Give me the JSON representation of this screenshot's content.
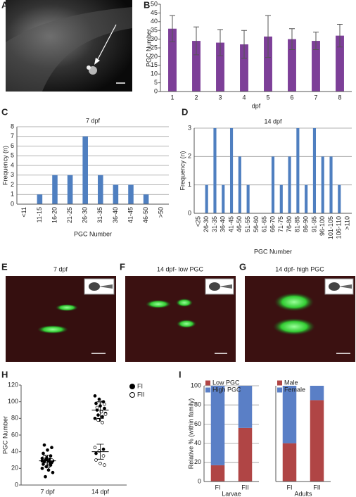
{
  "figure": {
    "panel_labels": [
      "A",
      "B",
      "C",
      "D",
      "E",
      "F",
      "G",
      "H",
      "I"
    ],
    "image_titles": [
      "7 dpf",
      "14 dpf- low PGC",
      "14 dpf- high PGC"
    ]
  },
  "chart_data": [
    {
      "type": "bar",
      "categories": [
        "1",
        "2",
        "3",
        "4",
        "5",
        "6",
        "7",
        "8"
      ],
      "values": [
        36,
        29,
        28,
        27,
        31.5,
        30,
        29,
        32
      ],
      "errors": [
        7.5,
        8,
        7.5,
        8,
        12,
        6,
        5,
        6.5
      ],
      "color": "#7d3f98",
      "xlabel": "dpf",
      "ylabel": "PGC Number",
      "ylim": [
        0,
        50
      ],
      "yticks": [
        0,
        5,
        10,
        15,
        20,
        25,
        30,
        35,
        40,
        45,
        50
      ],
      "grid": false
    },
    {
      "type": "bar",
      "title": "7 dpf",
      "categories": [
        "<11",
        "11-15",
        "16-20",
        "21-25",
        "26-30",
        "31-35",
        "36-40",
        "41-45",
        "46-50",
        ">50"
      ],
      "values": [
        0,
        1,
        3,
        3,
        7,
        3,
        2,
        2,
        1,
        0
      ],
      "color": "#4f7fc0",
      "xlabel": "PGC Number",
      "ylabel": "Frequency (n)",
      "ylim": [
        0,
        8
      ],
      "yticks": [
        0,
        1,
        2,
        3,
        4,
        5,
        6,
        7,
        8
      ],
      "grid": true
    },
    {
      "type": "bar",
      "title": "14 dpf",
      "categories": [
        "<25",
        "26-30",
        "31-35",
        "36-40",
        "41-45",
        "46-50",
        "51-55",
        "56-60",
        "61-65",
        "66-70",
        "71-75",
        "76-80",
        "81-85",
        "86-90",
        "91-95",
        "96-100",
        "101-105",
        "106-110",
        ">110"
      ],
      "values": [
        0,
        1,
        3,
        1,
        3,
        2,
        1,
        0,
        0,
        2,
        1,
        2,
        3,
        1,
        3,
        2,
        2,
        1,
        0
      ],
      "color": "#4f7fc0",
      "xlabel": "PGC Number",
      "ylabel": "Frequency (n)",
      "ylim": [
        0,
        3
      ],
      "yticks": [
        0,
        1,
        2,
        3
      ],
      "grid": true
    },
    {
      "type": "strip",
      "categories": [
        "7 dpf",
        "14 dpf"
      ],
      "ylabel": "PGC Number",
      "ylim": [
        0,
        120
      ],
      "yticks": [
        0,
        20,
        40,
        60,
        80,
        100,
        120
      ],
      "series": [
        {
          "name": "FI",
          "marker": "filled",
          "color": "#000000",
          "values": [
            [
              20,
              22,
              24,
              25,
              26,
              27,
              28,
              28,
              29,
              30,
              31,
              32,
              33,
              35,
              38,
              42,
              45,
              48,
              18,
              15,
              10,
              27,
              29,
              31
            ],
            [
              107,
              103,
              100,
              98,
              95,
              92,
              90,
              88,
              86,
              84,
              82,
              80,
              78,
              43,
              38
            ]
          ]
        },
        {
          "name": "FII",
          "marker": "open",
          "color": "#000000",
          "values": [
            [
              26,
              30,
              34,
              22
            ],
            [
              100,
              97,
              93,
              88,
              85,
              78,
              75,
              45,
              41,
              35,
              30,
              26,
              24
            ]
          ]
        }
      ],
      "summaries": [
        [
          {
            "mean": 29,
            "sd": 7
          }
        ],
        [
          {
            "mean": 90,
            "sd": 10
          },
          {
            "mean": 40,
            "sd": 9
          }
        ]
      ]
    },
    {
      "type": "stacked_bar",
      "xlabel": "Larvae",
      "ylabel": "Relative % (within family)",
      "categories": [
        "FI",
        "FII"
      ],
      "series": [
        {
          "name": "Low PGC",
          "color": "#b04545",
          "values": [
            17,
            56
          ]
        },
        {
          "name": "High PGC",
          "color": "#5a7fc6",
          "values": [
            83,
            44
          ]
        }
      ],
      "ylim": [
        0,
        100
      ],
      "yticks": [
        0,
        20,
        40,
        60,
        80,
        100
      ],
      "grid": true
    },
    {
      "type": "stacked_bar",
      "xlabel": "Adults",
      "categories": [
        "FI",
        "FII"
      ],
      "series": [
        {
          "name": "Male",
          "color": "#b04545",
          "values": [
            40,
            85
          ]
        },
        {
          "name": "Female",
          "color": "#5a7fc6",
          "values": [
            60,
            15
          ]
        }
      ],
      "ylim": [
        0,
        100
      ]
    }
  ]
}
